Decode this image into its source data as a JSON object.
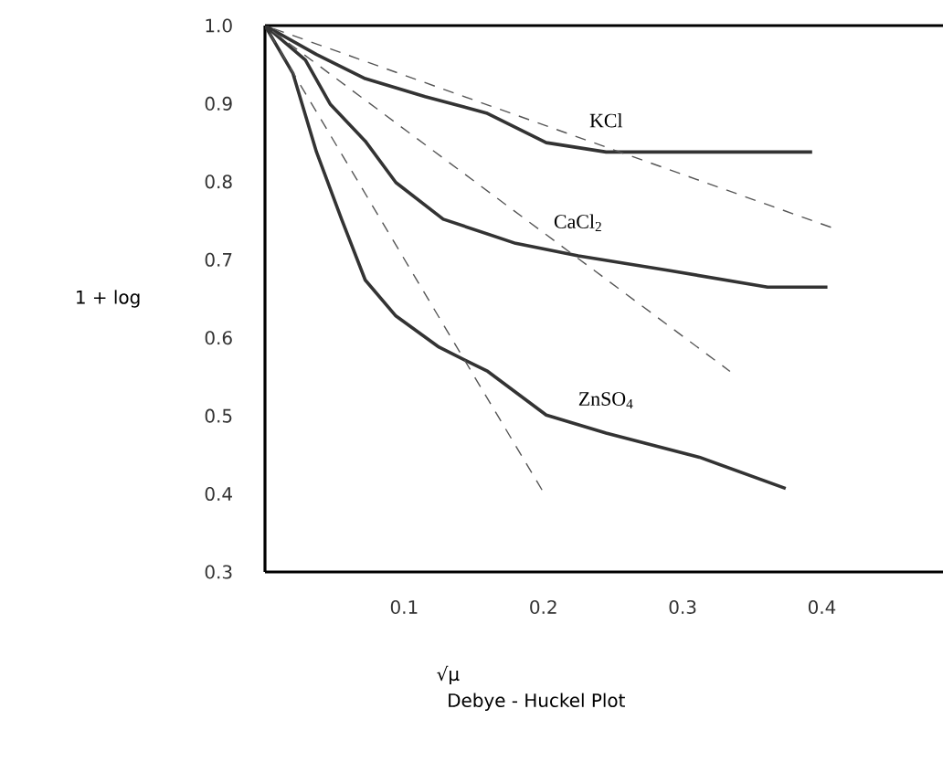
{
  "chart_data": {
    "type": "line",
    "title": "Debye - Huckel Plot",
    "xlabel": "√μ",
    "ylabel": "1 + log",
    "xlim": [
      0,
      0.487
    ],
    "ylim": [
      0.3,
      1.0
    ],
    "xticks": [
      0.1,
      0.2,
      0.3,
      0.4
    ],
    "yticks": [
      0.3,
      0.4,
      0.5,
      0.6,
      0.7,
      0.8,
      0.9,
      {
        "value": 1.0,
        "label": "1.0"
      }
    ],
    "legend": false,
    "grid": false,
    "marker": "none",
    "series": [
      {
        "name": "KCl",
        "color": "#333333",
        "line_style": "solid",
        "x": [
          0,
          0.037,
          0.072,
          0.115,
          0.159,
          0.202,
          0.245,
          0.393
        ],
        "values": [
          1.0,
          0.963,
          0.932,
          0.909,
          0.888,
          0.85,
          0.838,
          0.838
        ]
      },
      {
        "name": "CaCl$_{2}$",
        "color": "#333333",
        "line_style": "solid",
        "x": [
          0,
          0.029,
          0.047,
          0.072,
          0.094,
          0.128,
          0.18,
          0.225,
          0.291,
          0.361,
          0.404
        ],
        "values": [
          1.0,
          0.956,
          0.899,
          0.852,
          0.799,
          0.752,
          0.721,
          0.705,
          0.686,
          0.665,
          0.665
        ]
      },
      {
        "name": "ZnSO$_{4}$",
        "color": "#333333",
        "line_style": "solid",
        "x": [
          0,
          0.02,
          0.037,
          0.055,
          0.072,
          0.094,
          0.125,
          0.16,
          0.202,
          0.245,
          0.312,
          0.374
        ],
        "values": [
          1.0,
          0.939,
          0.838,
          0.752,
          0.674,
          0.628,
          0.588,
          0.557,
          0.501,
          0.478,
          0.447,
          0.407
        ]
      },
      {
        "color": "#555555",
        "line_style": "dashed",
        "x": [
          0,
          0.409
        ],
        "values": [
          1.0,
          0.74
        ]
      },
      {
        "color": "#555555",
        "line_style": "dashed",
        "x": [
          0,
          0.334
        ],
        "values": [
          1.0,
          0.557
        ]
      },
      {
        "color": "#555555",
        "line_style": "dashed",
        "x": [
          0,
          0.199
        ],
        "values": [
          1.0,
          0.405
        ]
      }
    ]
  }
}
